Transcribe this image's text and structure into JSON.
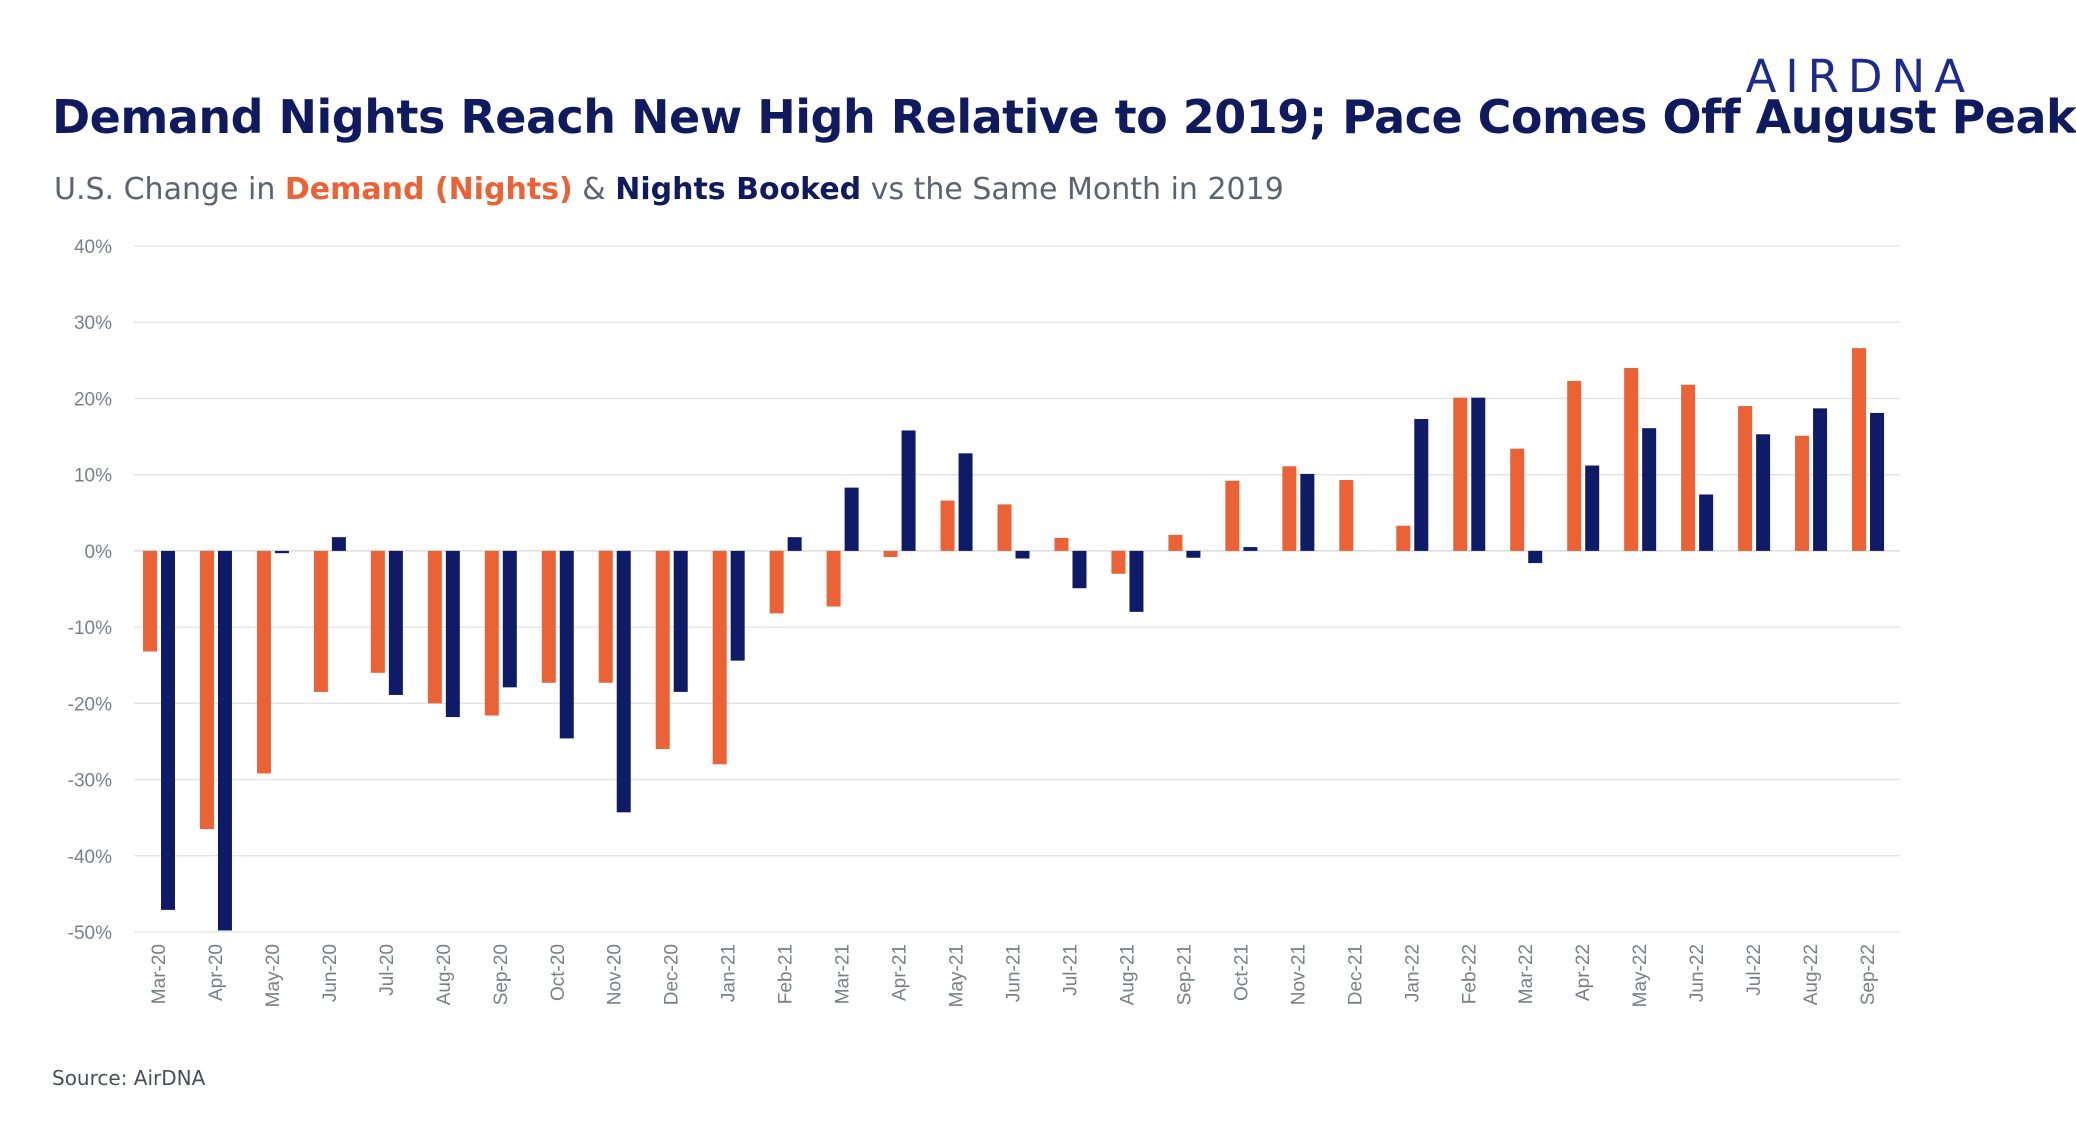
{
  "brand": {
    "logo_text": "AIRDNA"
  },
  "header": {
    "title": "Demand Nights Reach New High Relative to 2019; Pace Comes Off August Peak",
    "subtitle_prefix": "U.S. Change in ",
    "subtitle_series1": "Demand (Nights)",
    "subtitle_amp": " & ",
    "subtitle_series2": "Nights Booked",
    "subtitle_suffix": " vs the Same Month in 2019"
  },
  "footer": {
    "source": "Source: AirDNA"
  },
  "colors": {
    "demand": "#ea6235",
    "booked": "#0f1b66",
    "title": "#0f1b5e",
    "grid": "#e3e3e3"
  },
  "chart_data": {
    "type": "bar",
    "title": "Demand Nights Reach New High Relative to 2019; Pace Comes Off August Peak",
    "subtitle": "U.S. Change in Demand (Nights) & Nights Booked vs the Same Month in 2019",
    "xlabel": "",
    "ylabel": "",
    "ylim": [
      -50,
      40
    ],
    "yticks": [
      40,
      30,
      20,
      10,
      0,
      -10,
      -20,
      -30,
      -40,
      -50
    ],
    "ytick_labels": [
      "40%",
      "30%",
      "20%",
      "10%",
      "0%",
      "-10%",
      "-20%",
      "-30%",
      "-40%",
      "-50%"
    ],
    "grid": true,
    "legend": "in subtitle",
    "categories": [
      "Mar-20",
      "Apr-20",
      "May-20",
      "Jun-20",
      "Jul-20",
      "Aug-20",
      "Sep-20",
      "Oct-20",
      "Nov-20",
      "Dec-20",
      "Jan-21",
      "Feb-21",
      "Mar-21",
      "Apr-21",
      "May-21",
      "Jun-21",
      "Jul-21",
      "Aug-21",
      "Sep-21",
      "Oct-21",
      "Nov-21",
      "Dec-21",
      "Jan-22",
      "Feb-22",
      "Mar-22",
      "Apr-22",
      "May-22",
      "Jun-22",
      "Jul-22",
      "Aug-22",
      "Sep-22"
    ],
    "series": [
      {
        "name": "Demand (Nights)",
        "color": "#ea6235",
        "values": [
          -13.2,
          -36.5,
          -29.2,
          -18.5,
          -16.0,
          -20.0,
          -21.6,
          -17.3,
          -17.3,
          -26.0,
          -28.0,
          -8.2,
          -7.3,
          -0.8,
          6.6,
          6.1,
          1.7,
          -3.0,
          2.1,
          9.2,
          11.1,
          9.3,
          3.3,
          20.1,
          13.4,
          22.3,
          24.0,
          21.8,
          19.0,
          15.1,
          26.6
        ]
      },
      {
        "name": "Nights Booked",
        "color": "#0f1b66",
        "values": [
          -47.1,
          -49.8,
          -0.3,
          1.8,
          -18.9,
          -21.8,
          -17.9,
          -24.6,
          -34.3,
          -18.5,
          -14.4,
          1.8,
          8.3,
          15.8,
          12.8,
          -1.0,
          -4.9,
          -8.0,
          -0.9,
          0.5,
          10.1,
          0,
          17.3,
          20.1,
          -1.6,
          11.2,
          16.1,
          7.4,
          15.3,
          18.7,
          18.1
        ]
      }
    ]
  }
}
